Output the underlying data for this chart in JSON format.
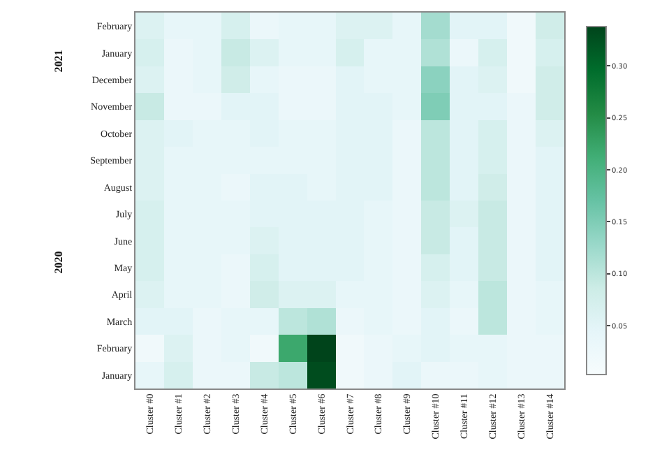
{
  "chart_data": {
    "type": "heatmap",
    "categories": [
      "Cluster #0",
      "Cluster #1",
      "Cluster #2",
      "Cluster #3",
      "Cluster #4",
      "Cluster #5",
      "Cluster #6",
      "Cluster #7",
      "Cluster #8",
      "Cluster #9",
      "Cluster #10",
      "Cluster #11",
      "Cluster #12",
      "Cluster #13",
      "Cluster #14"
    ],
    "y_categories": [
      "February",
      "January",
      "December",
      "November",
      "October",
      "September",
      "August",
      "July",
      "June",
      "May",
      "April",
      "March",
      "February",
      "January"
    ],
    "annotations": [
      "2021",
      "2020"
    ],
    "cells": [
      [
        0.06,
        0.04,
        0.04,
        0.07,
        0.03,
        0.04,
        0.04,
        0.06,
        0.06,
        0.04,
        0.12,
        0.05,
        0.05,
        0.02,
        0.08
      ],
      [
        0.07,
        0.03,
        0.04,
        0.09,
        0.06,
        0.04,
        0.04,
        0.07,
        0.04,
        0.04,
        0.11,
        0.03,
        0.07,
        0.02,
        0.07
      ],
      [
        0.06,
        0.03,
        0.04,
        0.08,
        0.04,
        0.03,
        0.03,
        0.05,
        0.04,
        0.04,
        0.14,
        0.05,
        0.06,
        0.02,
        0.08
      ],
      [
        0.09,
        0.03,
        0.03,
        0.05,
        0.05,
        0.03,
        0.03,
        0.05,
        0.05,
        0.04,
        0.15,
        0.05,
        0.05,
        0.03,
        0.08
      ],
      [
        0.06,
        0.05,
        0.04,
        0.04,
        0.05,
        0.04,
        0.04,
        0.05,
        0.05,
        0.03,
        0.1,
        0.05,
        0.07,
        0.03,
        0.06
      ],
      [
        0.06,
        0.04,
        0.04,
        0.04,
        0.04,
        0.04,
        0.04,
        0.05,
        0.05,
        0.03,
        0.1,
        0.05,
        0.07,
        0.03,
        0.05
      ],
      [
        0.06,
        0.04,
        0.04,
        0.03,
        0.05,
        0.05,
        0.04,
        0.05,
        0.05,
        0.03,
        0.1,
        0.05,
        0.08,
        0.03,
        0.05
      ],
      [
        0.07,
        0.04,
        0.04,
        0.04,
        0.05,
        0.05,
        0.05,
        0.05,
        0.04,
        0.03,
        0.09,
        0.06,
        0.09,
        0.03,
        0.05
      ],
      [
        0.07,
        0.04,
        0.04,
        0.04,
        0.06,
        0.05,
        0.05,
        0.05,
        0.04,
        0.03,
        0.09,
        0.05,
        0.09,
        0.03,
        0.05
      ],
      [
        0.07,
        0.04,
        0.04,
        0.03,
        0.07,
        0.05,
        0.05,
        0.05,
        0.04,
        0.03,
        0.07,
        0.05,
        0.09,
        0.03,
        0.05
      ],
      [
        0.06,
        0.04,
        0.04,
        0.03,
        0.08,
        0.06,
        0.06,
        0.04,
        0.04,
        0.03,
        0.06,
        0.04,
        0.1,
        0.03,
        0.04
      ],
      [
        0.05,
        0.05,
        0.03,
        0.04,
        0.04,
        0.1,
        0.11,
        0.03,
        0.04,
        0.03,
        0.05,
        0.03,
        0.1,
        0.03,
        0.04
      ],
      [
        0.02,
        0.06,
        0.03,
        0.04,
        0.02,
        0.22,
        0.34,
        0.02,
        0.03,
        0.04,
        0.05,
        0.04,
        0.04,
        0.03,
        0.03
      ],
      [
        0.04,
        0.07,
        0.03,
        0.03,
        0.09,
        0.1,
        0.33,
        0.02,
        0.03,
        0.05,
        0.03,
        0.03,
        0.04,
        0.03,
        0.03
      ]
    ],
    "clim": [
      0.003,
      0.338
    ],
    "cticks": [
      {
        "value": 0.05,
        "label": "0.05"
      },
      {
        "value": 0.1,
        "label": "0.10"
      },
      {
        "value": 0.15,
        "label": "0.15"
      },
      {
        "value": 0.2,
        "label": "0.20"
      },
      {
        "value": 0.25,
        "label": "0.25"
      },
      {
        "value": 0.3,
        "label": "0.30"
      }
    ]
  }
}
